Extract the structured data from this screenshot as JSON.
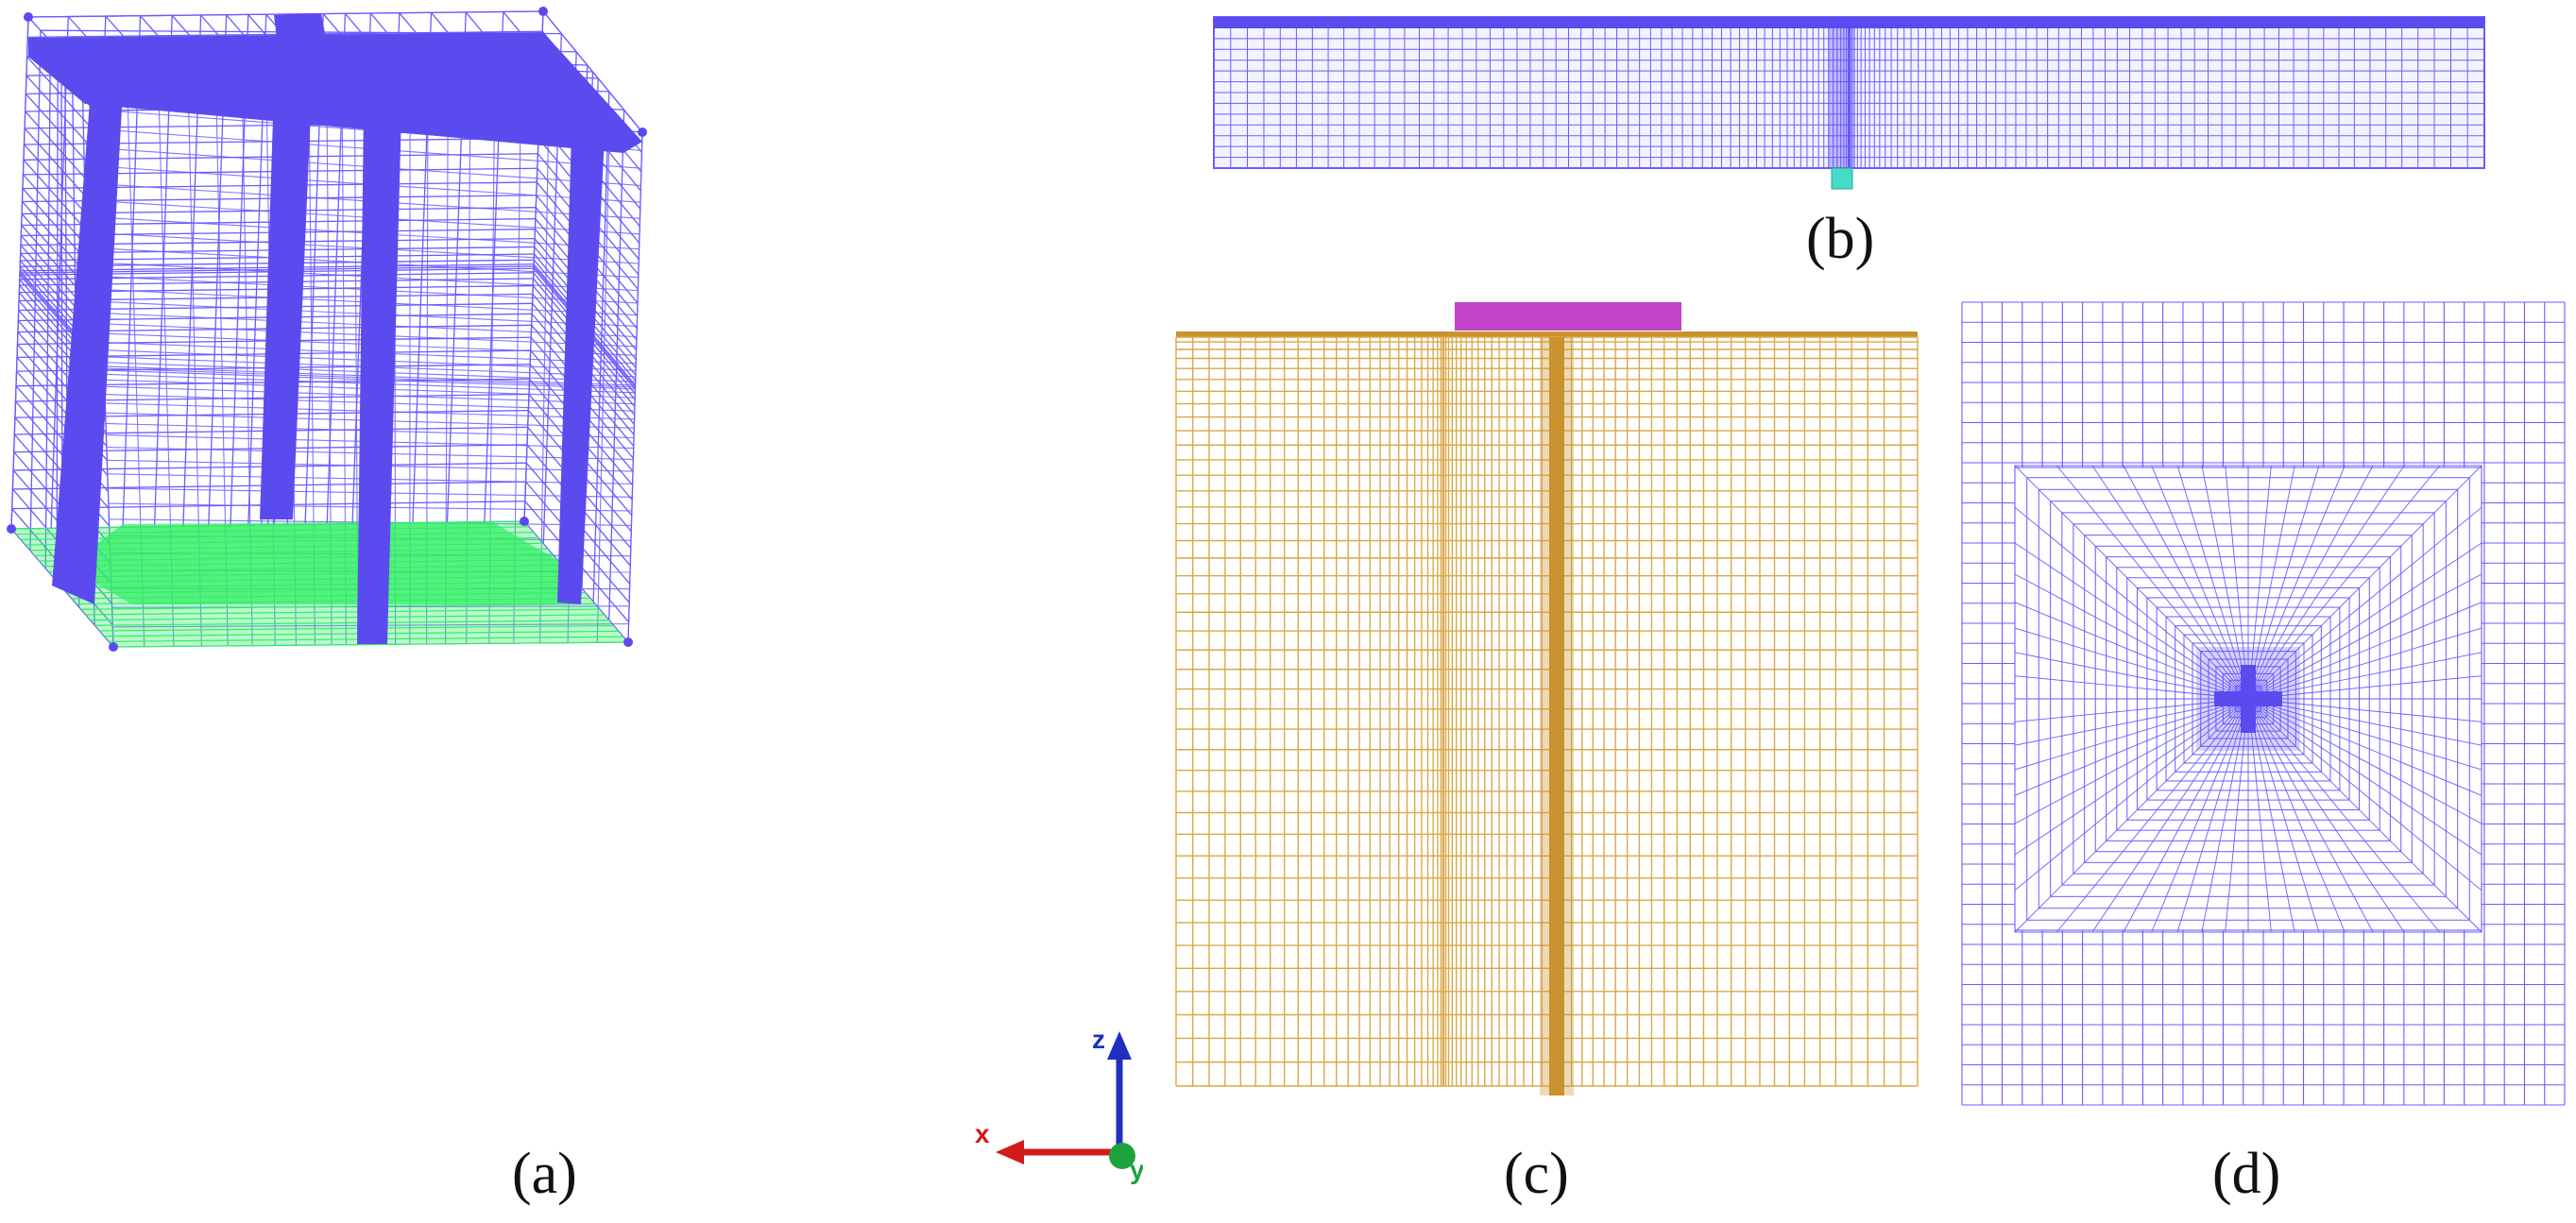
{
  "captions": {
    "a": "(a)",
    "b": "(b)",
    "c": "(c)",
    "d": "(d)"
  },
  "axes": {
    "z": "z",
    "x": "x",
    "y": "y"
  },
  "colors": {
    "mesh_blue": "#6a5cff",
    "mesh_dense": "#5b4bef",
    "ground_green": "#33ee66",
    "soil_gold": "#d9a84a",
    "pile_gold": "#c9922e",
    "pad_magenta": "#c043c9",
    "foot_teal": "#44dcc8",
    "axis_z": "#1f2fbf",
    "axis_x": "#d11a1a",
    "axis_y": "#1ea23c"
  }
}
